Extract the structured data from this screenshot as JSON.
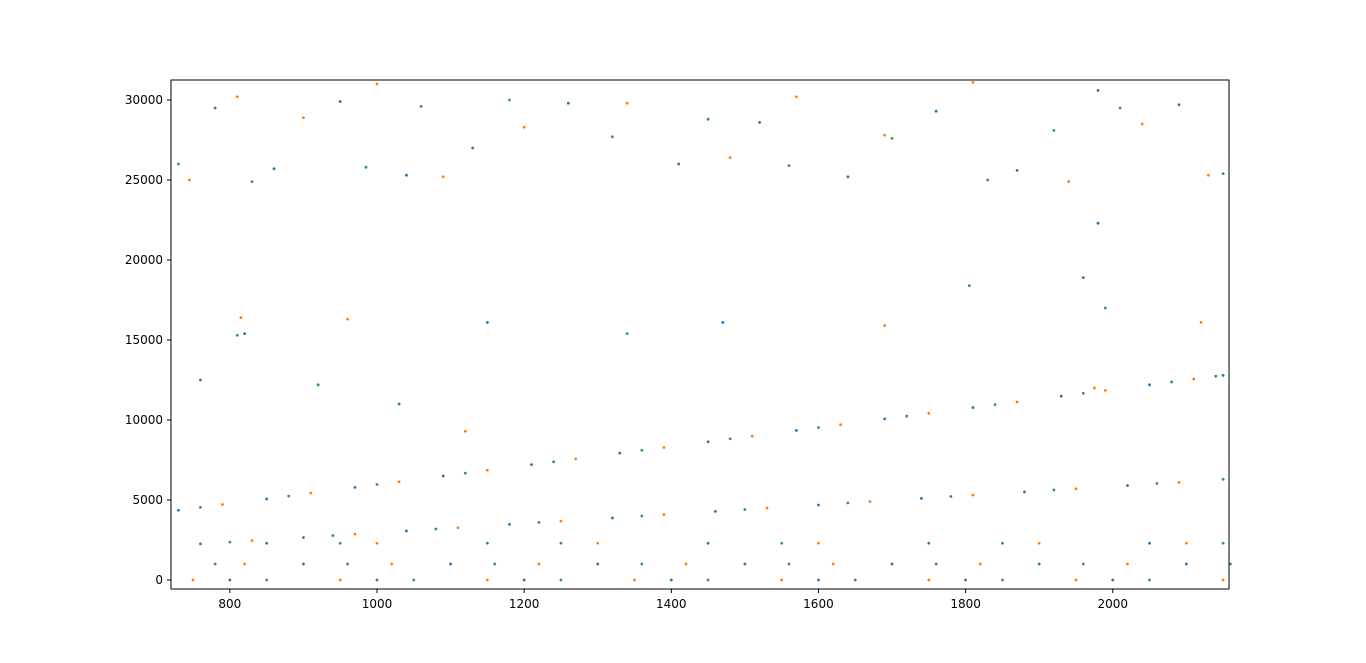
{
  "chart_data": {
    "type": "scatter",
    "xlim": [
      720,
      2158
    ],
    "ylim": [
      -560,
      31250
    ],
    "xticks": [
      800,
      1000,
      1200,
      1400,
      1600,
      1800,
      2000
    ],
    "yticks": [
      0,
      5000,
      10000,
      15000,
      20000,
      25000,
      30000
    ],
    "grid": false,
    "series": [
      {
        "color": "#1f77b4",
        "x": [
          730,
          850,
          970,
          1090,
          1210,
          1330,
          1450,
          1570,
          1690,
          1810,
          1930,
          2050,
          2150,
          760,
          900,
          1040,
          1180,
          1320,
          1460,
          1600,
          1740,
          1880,
          2020,
          800,
          1000,
          1200,
          1400,
          1600,
          1800,
          2000,
          900,
          1100,
          1300,
          1500,
          1700,
          1900,
          2100,
          850,
          1150,
          1450,
          1750,
          2050,
          780,
          860,
          950,
          1040,
          1130,
          1260,
          1410,
          1520,
          1640,
          1760,
          1870,
          1980,
          2090,
          820,
          1150,
          1470,
          1960,
          1980,
          760,
          1030
        ],
        "values": [
          4360,
          5070,
          5790,
          6500,
          7210,
          7930,
          8640,
          9350,
          10070,
          10780,
          11490,
          12200,
          12790,
          2260,
          2660,
          3070,
          3480,
          3880,
          4290,
          4690,
          5100,
          5510,
          5910,
          0,
          0,
          0,
          0,
          0,
          0,
          0,
          1000,
          1000,
          1000,
          1000,
          1000,
          1000,
          1000,
          2300,
          2300,
          2300,
          2300,
          2300,
          29500,
          25700,
          29900,
          25300,
          27000,
          29800,
          26000,
          28600,
          25200,
          29300,
          25600,
          30600,
          29700,
          15400,
          16100,
          16100,
          18900,
          22300,
          12500,
          11000
        ]
      },
      {
        "color": "#ff7f0e",
        "x": [
          790,
          910,
          1030,
          1150,
          1270,
          1390,
          1510,
          1630,
          1750,
          1870,
          1990,
          2110,
          830,
          970,
          1110,
          1250,
          1390,
          1530,
          1670,
          1810,
          1950,
          2090,
          750,
          950,
          1150,
          1350,
          1550,
          1750,
          1950,
          2150,
          820,
          1020,
          1220,
          1420,
          1620,
          1820,
          2020,
          1000,
          1300,
          1600,
          1900,
          2100,
          745,
          810,
          900,
          1000,
          1090,
          1200,
          1340,
          1480,
          1570,
          1690,
          1810,
          1940,
          2040,
          2130,
          815,
          960,
          1690,
          2120,
          1975,
          1120
        ],
        "values": [
          4720,
          5430,
          6140,
          6860,
          7570,
          8280,
          8990,
          9710,
          10420,
          11130,
          11850,
          12560,
          2460,
          2870,
          3270,
          3680,
          4090,
          4500,
          4900,
          5310,
          5700,
          6100,
          0,
          0,
          0,
          0,
          0,
          0,
          0,
          0,
          1000,
          1000,
          1000,
          1000,
          1000,
          1000,
          1000,
          2300,
          2300,
          2300,
          2300,
          2300,
          25000,
          30200,
          28900,
          31000,
          25200,
          28300,
          29800,
          26400,
          30200,
          27800,
          31100,
          24900,
          28500,
          25300,
          16400,
          16300,
          15900,
          16100,
          12000,
          9300
        ]
      },
      {
        "color": "#2ca02c",
        "x": [
          760,
          880,
          1000,
          1120,
          1240,
          1360,
          1480,
          1600,
          1720,
          1840,
          1960,
          2080,
          2140,
          800,
          940,
          1080,
          1220,
          1360,
          1500,
          1640,
          1780,
          1920,
          2060,
          2150,
          850,
          1050,
          1250,
          1450,
          1650,
          1850,
          2050,
          780,
          960,
          1160,
          1360,
          1560,
          1760,
          1960,
          2160,
          950,
          1250,
          1550,
          1850,
          2150,
          730,
          830,
          985,
          1060,
          1180,
          1320,
          1450,
          1560,
          1700,
          1830,
          1920,
          2010,
          2150,
          810,
          1340,
          1805,
          1990,
          920
        ],
        "values": [
          4540,
          5250,
          5970,
          6680,
          7390,
          8110,
          8820,
          9530,
          10240,
          10960,
          11670,
          12380,
          12740,
          2370,
          2780,
          3190,
          3600,
          4000,
          4410,
          4820,
          5220,
          5630,
          6040,
          6300,
          0,
          0,
          0,
          0,
          0,
          0,
          0,
          1000,
          1000,
          1000,
          1000,
          1000,
          1000,
          1000,
          1000,
          2300,
          2300,
          2300,
          2300,
          2300,
          26000,
          24900,
          25800,
          29600,
          30000,
          27700,
          28800,
          25900,
          27600,
          25000,
          28100,
          29500,
          25400,
          15300,
          15400,
          18400,
          17000,
          12200
        ]
      }
    ]
  }
}
